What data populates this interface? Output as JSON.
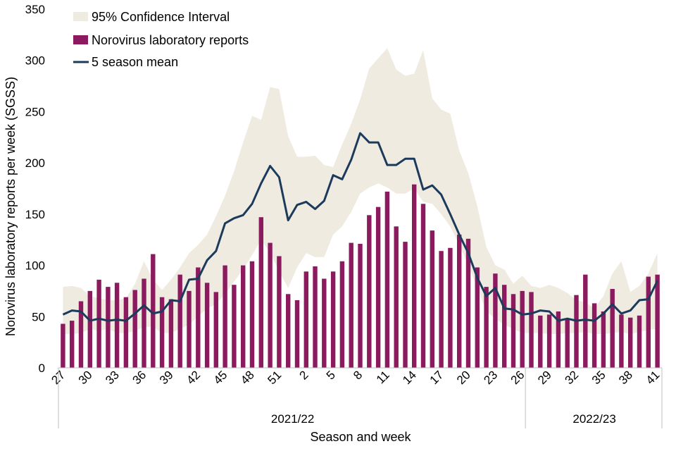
{
  "chart_data": {
    "type": "bar",
    "title": "",
    "xlabel": "Season and week",
    "ylabel": "Norovirus laboratory reports per week (SGSS)",
    "ylim": [
      0,
      350
    ],
    "yticks": [
      0,
      50,
      100,
      150,
      200,
      250,
      300,
      350
    ],
    "grid": false,
    "legend_position": "top-left",
    "weeks": [
      27,
      28,
      29,
      30,
      31,
      32,
      33,
      34,
      35,
      36,
      37,
      38,
      39,
      40,
      41,
      42,
      43,
      44,
      45,
      46,
      47,
      48,
      49,
      50,
      51,
      52,
      1,
      2,
      3,
      4,
      5,
      6,
      7,
      8,
      9,
      10,
      11,
      12,
      13,
      14,
      15,
      16,
      17,
      18,
      19,
      20,
      21,
      22,
      23,
      24,
      25,
      26,
      27,
      28,
      29,
      30,
      31,
      32,
      33,
      34,
      35,
      36,
      37,
      38,
      39,
      40,
      41
    ],
    "x_tick_labels": [
      "27",
      "30",
      "33",
      "36",
      "39",
      "42",
      "45",
      "48",
      "51",
      "2",
      "5",
      "8",
      "11",
      "14",
      "17",
      "20",
      "23",
      "26",
      "29",
      "32",
      "35",
      "38",
      "41"
    ],
    "seasons": [
      {
        "label": "2021/22",
        "first_week_index": 0,
        "last_week_index": 51
      },
      {
        "label": "2022/23",
        "first_week_index": 52,
        "last_week_index": 66
      }
    ],
    "series": [
      {
        "name": "95% Confidence Interval",
        "kind": "band",
        "color": "#F0EBE0",
        "lower": [
          33,
          33,
          34,
          38,
          36,
          38,
          34,
          34,
          36,
          40,
          40,
          34,
          34,
          38,
          42,
          50,
          58,
          62,
          72,
          84,
          96,
          110,
          125,
          112,
          94,
          78,
          98,
          112,
          108,
          108,
          130,
          138,
          152,
          170,
          176,
          180,
          176,
          170,
          170,
          175,
          162,
          160,
          150,
          138,
          120,
          100,
          78,
          55,
          48,
          42,
          38,
          34,
          34,
          34,
          33,
          33,
          34,
          34,
          35,
          33,
          33,
          34,
          35,
          33,
          35,
          37,
          38
        ],
        "upper": [
          79,
          80,
          78,
          70,
          68,
          66,
          66,
          68,
          82,
          104,
          86,
          76,
          86,
          98,
          112,
          120,
          130,
          148,
          168,
          192,
          220,
          246,
          242,
          274,
          272,
          226,
          206,
          206,
          207,
          198,
          196,
          218,
          238,
          262,
          292,
          302,
          312,
          291,
          285,
          287,
          310,
          263,
          252,
          248,
          212,
          190,
          158,
          118,
          100,
          96,
          82,
          90,
          80,
          78,
          81,
          78,
          73,
          66,
          64,
          58,
          70,
          92,
          104,
          74,
          80,
          92,
          112
        ]
      },
      {
        "name": "Norovirus laboratory reports",
        "kind": "bar",
        "color": "#8B1A5E",
        "values": [
          43,
          46,
          65,
          75,
          86,
          79,
          83,
          69,
          76,
          87,
          111,
          69,
          67,
          91,
          75,
          98,
          83,
          74,
          100,
          81,
          100,
          104,
          147,
          122,
          109,
          72,
          66,
          94,
          99,
          87,
          94,
          104,
          122,
          121,
          149,
          157,
          172,
          138,
          123,
          179,
          160,
          134,
          114,
          117,
          130,
          126,
          98,
          79,
          92,
          81,
          72,
          75,
          74,
          51,
          52,
          55,
          48,
          71,
          91,
          63,
          55,
          77,
          52,
          49,
          51,
          89,
          91
        ]
      },
      {
        "name": "5 season mean",
        "kind": "line",
        "color": "#1B3A5C",
        "values": [
          52,
          56,
          55,
          46,
          48,
          46,
          47,
          46,
          53,
          61,
          53,
          55,
          66,
          65,
          86,
          87,
          105,
          114,
          141,
          146,
          149,
          160,
          180,
          197,
          186,
          144,
          159,
          162,
          155,
          163,
          188,
          184,
          203,
          229,
          220,
          220,
          198,
          198,
          204,
          204,
          174,
          178,
          169,
          150,
          130,
          112,
          88,
          70,
          78,
          58,
          57,
          52,
          53,
          56,
          55,
          46,
          48,
          46,
          47,
          46,
          53,
          62,
          53,
          56,
          66,
          67,
          85
        ]
      }
    ]
  }
}
